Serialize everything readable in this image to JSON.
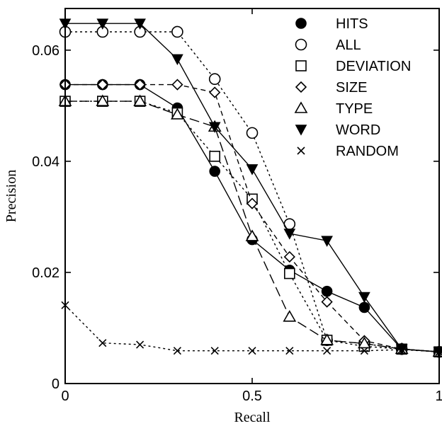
{
  "chart_data": {
    "type": "line",
    "xlabel": "Recall",
    "ylabel": "Precision",
    "xlim": [
      0,
      1
    ],
    "ylim": [
      0,
      0.0675
    ],
    "x_ticks": [
      0,
      0.5,
      1
    ],
    "x_tick_labels": [
      "0",
      "0.5",
      "1"
    ],
    "y_ticks": [
      0,
      0.02,
      0.04,
      0.06
    ],
    "y_tick_labels": [
      "0",
      "0.02",
      "0.04",
      "0.06"
    ],
    "grid": false,
    "legend_position": "top-right",
    "series": [
      {
        "name": "HITS",
        "marker": "filled-circle",
        "dash": "solid",
        "x": [
          0,
          0.1,
          0.2,
          0.3,
          0.4,
          0.5,
          0.6,
          0.7,
          0.8,
          0.9,
          1.0
        ],
        "y": [
          0.0538,
          0.0538,
          0.0538,
          0.0496,
          0.0382,
          0.0259,
          0.0204,
          0.0166,
          0.0137,
          0.0062,
          0.0057
        ]
      },
      {
        "name": "ALL",
        "marker": "open-circle",
        "dash": "dotted",
        "x": [
          0,
          0.1,
          0.2,
          0.3,
          0.4,
          0.5,
          0.6,
          0.7,
          0.8,
          0.9,
          1.0
        ],
        "y": [
          0.0633,
          0.0633,
          0.0633,
          0.0633,
          0.0548,
          0.0451,
          0.0287,
          0.0078,
          0.0072,
          0.0062,
          0.0057
        ]
      },
      {
        "name": "DEVIATION",
        "marker": "open-square",
        "dash": "dotted",
        "x": [
          0,
          0.1,
          0.2,
          0.3,
          0.4,
          0.5,
          0.6,
          0.7,
          0.8,
          0.9,
          1.0
        ],
        "y": [
          0.0508,
          0.0508,
          0.0508,
          0.0487,
          0.0409,
          0.0332,
          0.0198,
          0.0078,
          0.0067,
          0.0062,
          0.0057
        ]
      },
      {
        "name": "SIZE",
        "marker": "open-diamond",
        "dash": "dashed",
        "x": [
          0,
          0.1,
          0.2,
          0.3,
          0.4,
          0.5,
          0.6,
          0.7,
          0.8,
          0.9,
          1.0
        ],
        "y": [
          0.0538,
          0.0538,
          0.0538,
          0.0538,
          0.0524,
          0.0324,
          0.0228,
          0.0147,
          0.0077,
          0.0062,
          0.0057
        ]
      },
      {
        "name": "TYPE",
        "marker": "open-triangle",
        "dash": "longdash",
        "x": [
          0,
          0.1,
          0.2,
          0.3,
          0.4,
          0.5,
          0.6,
          0.7,
          0.8,
          0.9,
          1.0
        ],
        "y": [
          0.0508,
          0.0508,
          0.0508,
          0.0484,
          0.0462,
          0.0265,
          0.012,
          0.0078,
          0.0072,
          0.0062,
          0.0057
        ]
      },
      {
        "name": "WORD",
        "marker": "filled-triangle-down",
        "dash": "solid",
        "x": [
          0,
          0.1,
          0.2,
          0.3,
          0.4,
          0.5,
          0.6,
          0.7,
          0.8,
          0.9,
          1.0
        ],
        "y": [
          0.0648,
          0.0648,
          0.0648,
          0.0584,
          0.0462,
          0.0386,
          0.027,
          0.0257,
          0.0156,
          0.0062,
          0.0057
        ]
      },
      {
        "name": "RANDOM",
        "marker": "cross",
        "dash": "dotted",
        "x": [
          0,
          0.1,
          0.2,
          0.3,
          0.4,
          0.5,
          0.6,
          0.7,
          0.8,
          0.9,
          1.0
        ],
        "y": [
          0.0141,
          0.0073,
          0.007,
          0.0059,
          0.0059,
          0.0059,
          0.0059,
          0.0059,
          0.0059,
          0.0061,
          0.0057
        ]
      }
    ]
  }
}
